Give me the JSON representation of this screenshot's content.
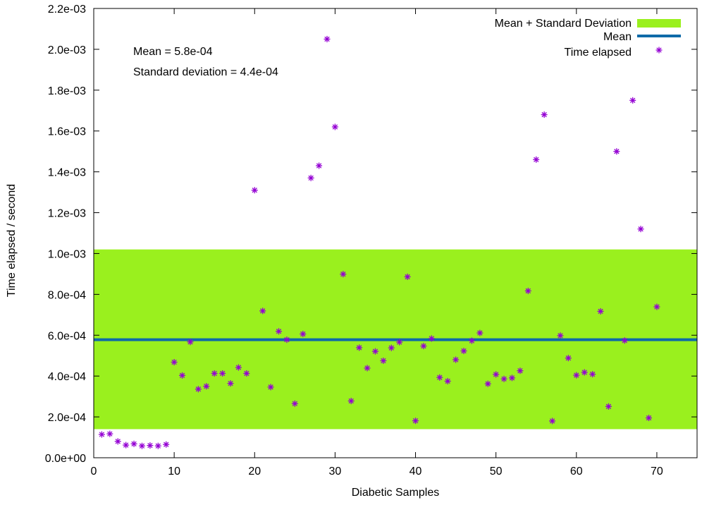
{
  "chart_data": {
    "type": "scatter",
    "xlabel": "Diabetic Samples",
    "ylabel": "Time elapsed / second",
    "xlim": [
      0,
      75
    ],
    "ylim": [
      0,
      0.0022
    ],
    "xticks": [
      0,
      10,
      20,
      30,
      40,
      50,
      60,
      70
    ],
    "xtick_labels": [
      "0",
      "10",
      "20",
      "30",
      "40",
      "50",
      "60",
      "70"
    ],
    "yticks": [
      0,
      0.0002,
      0.0004,
      0.0006,
      0.0008,
      0.001,
      0.0012,
      0.0014,
      0.0016,
      0.0018,
      0.002,
      0.0022
    ],
    "ytick_labels": [
      "0.0e+00",
      "2.0e-04",
      "4.0e-04",
      "6.0e-04",
      "8.0e-04",
      "1.0e-03",
      "1.2e-03",
      "1.4e-03",
      "1.6e-03",
      "1.8e-03",
      "2.0e-03",
      "2.2e-03"
    ],
    "grid": false,
    "legend_position": "top-right",
    "band": {
      "name": "Mean + Standard Deviation",
      "lower": 0.00014,
      "upper": 0.00102,
      "color": "#9af01e"
    },
    "mean_line": {
      "name": "Mean",
      "value": 0.000578,
      "color": "#0e6aa8"
    },
    "series": [
      {
        "name": "Time elapsed",
        "color": "#9400d3",
        "marker": "asterisk",
        "x": [
          1,
          2,
          3,
          4,
          5,
          6,
          7,
          8,
          9,
          10,
          11,
          12,
          13,
          14,
          15,
          16,
          17,
          18,
          19,
          20,
          21,
          22,
          23,
          24,
          25,
          26,
          27,
          28,
          29,
          30,
          31,
          32,
          33,
          34,
          35,
          36,
          37,
          38,
          39,
          40,
          41,
          42,
          43,
          44,
          45,
          46,
          47,
          48,
          49,
          50,
          51,
          52,
          53,
          54,
          55,
          56,
          57,
          58,
          59,
          60,
          61,
          62,
          63,
          64,
          65,
          66,
          67,
          68,
          69,
          70
        ],
        "y": [
          0.000114,
          0.000117,
          8e-05,
          6.2e-05,
          6.8e-05,
          5.8e-05,
          6e-05,
          5.8e-05,
          6.5e-05,
          0.000468,
          0.000403,
          0.000567,
          0.000336,
          0.00035,
          0.000413,
          0.000413,
          0.000364,
          0.000442,
          0.000413,
          0.00131,
          0.000719,
          0.000346,
          0.000619,
          0.000578,
          0.000265,
          0.000606,
          0.00137,
          0.00143,
          0.00205,
          0.00162,
          0.000899,
          0.000278,
          0.000539,
          0.000439,
          0.000521,
          0.000475,
          0.000538,
          0.000566,
          0.000886,
          0.000181,
          0.000547,
          0.000584,
          0.000393,
          0.000375,
          0.00048,
          0.000523,
          0.000573,
          0.000611,
          0.000362,
          0.000408,
          0.000386,
          0.000391,
          0.000426,
          0.000817,
          0.00146,
          0.00168,
          0.00018,
          0.000598,
          0.000488,
          0.000404,
          0.000418,
          0.000409,
          0.000717,
          0.000251,
          0.0015,
          0.000574,
          0.00175,
          0.00112,
          0.000195,
          0.000739
        ]
      }
    ],
    "annotations": [
      "Mean = 5.8e-04",
      "Standard deviation = 4.4e-04"
    ]
  }
}
